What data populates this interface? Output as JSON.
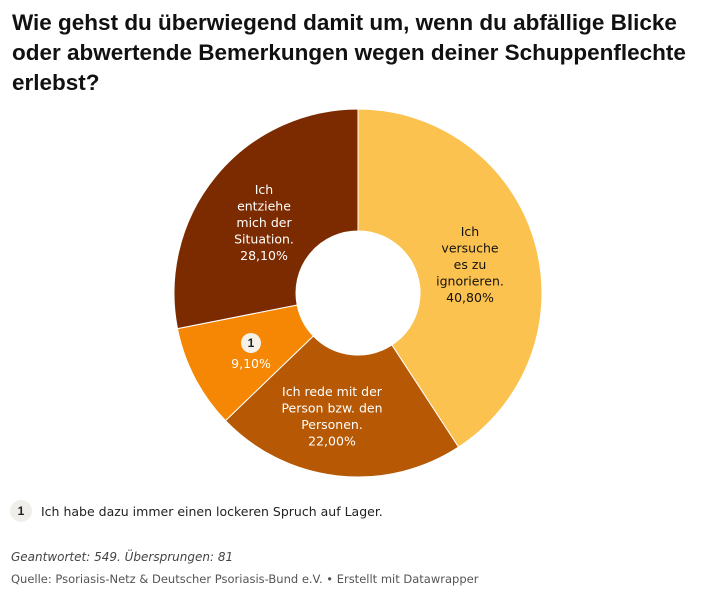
{
  "title": "Wie gehst du überwiegend damit um, wenn du abfällige Blicke oder abwertende Bemerkungen wegen deiner Schuppenflechte erlebst?",
  "chart_data": {
    "type": "pie",
    "donut": true,
    "slices": [
      {
        "label_lines": [
          "Ich",
          "versuche",
          "es zu",
          "ignorieren."
        ],
        "value_text": "40,80%",
        "value": 40.8,
        "color": "#fcc24f"
      },
      {
        "label_lines": [
          "Ich rede mit der",
          "Person bzw. den",
          "Personen."
        ],
        "value_text": "22,00%",
        "value": 22.0,
        "color": "#b65804"
      },
      {
        "label_lines": [],
        "note_marker": "1",
        "value_text": "9,10%",
        "value": 9.1,
        "color": "#f58705"
      },
      {
        "label_lines": [
          "Ich",
          "entziehe",
          "mich der",
          "Situation."
        ],
        "value_text": "28,10%",
        "value": 28.1,
        "color": "#7c2b00"
      }
    ]
  },
  "footnote": {
    "marker": "1",
    "text": "Ich habe dazu immer einen lockeren Spruch auf Lager."
  },
  "answered": "Geantwortet: 549. Übersprungen: 81",
  "source": "Quelle: Psoriasis-Netz & Deutscher Psoriasis-Bund e.V. • Erstellt mit Datawrapper"
}
